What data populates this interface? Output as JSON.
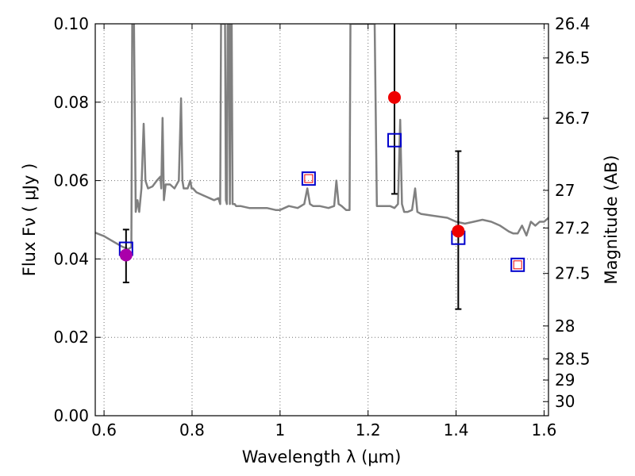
{
  "chart_data": {
    "type": "scatter",
    "xlabel": "Wavelength  λ (μm)",
    "ylabel": "Flux  Fν  ( μJy )",
    "ylabel_right": "Magnitude (AB)",
    "xlim": [
      0.58,
      1.61
    ],
    "ylim": [
      0.0,
      0.1
    ],
    "grid": true,
    "x_ticks": [
      {
        "value": 0.6,
        "label": "0.6"
      },
      {
        "value": 0.8,
        "label": "0.8"
      },
      {
        "value": 1.0,
        "label": "1"
      },
      {
        "value": 1.2,
        "label": "1.2"
      },
      {
        "value": 1.4,
        "label": "1.4"
      },
      {
        "value": 1.6,
        "label": "1.6"
      }
    ],
    "y_ticks": [
      {
        "value": 0.0,
        "label": "0.00"
      },
      {
        "value": 0.02,
        "label": "0.02"
      },
      {
        "value": 0.04,
        "label": "0.04"
      },
      {
        "value": 0.06,
        "label": "0.06"
      },
      {
        "value": 0.08,
        "label": "0.08"
      },
      {
        "value": 0.1,
        "label": "0.10"
      }
    ],
    "mag_ticks": [
      {
        "value": 0.1,
        "label": "26.4"
      },
      {
        "value": 0.0913,
        "label": "26.5"
      },
      {
        "value": 0.0759,
        "label": "26.7"
      },
      {
        "value": 0.0575,
        "label": "27"
      },
      {
        "value": 0.0479,
        "label": "27.2"
      },
      {
        "value": 0.0363,
        "label": "27.5"
      },
      {
        "value": 0.0229,
        "label": "28"
      },
      {
        "value": 0.0145,
        "label": "28.5"
      },
      {
        "value": 0.0091,
        "label": "29"
      },
      {
        "value": 0.0036,
        "label": "30"
      }
    ],
    "colors": {
      "model": "#808080",
      "observed_red": "#ee0000",
      "observed_magenta": "#aa00aa",
      "model_box": "#0000cc",
      "model_box_inner": "#ee0000",
      "errorbar": "#000000"
    },
    "model_spectrum": {
      "x": [
        0.58,
        0.6,
        0.62,
        0.64,
        0.655,
        0.662,
        0.664,
        0.666,
        0.668,
        0.672,
        0.676,
        0.68,
        0.685,
        0.69,
        0.692,
        0.694,
        0.7,
        0.71,
        0.72,
        0.728,
        0.73,
        0.733,
        0.736,
        0.74,
        0.75,
        0.76,
        0.77,
        0.775,
        0.778,
        0.781,
        0.79,
        0.796,
        0.799,
        0.802,
        0.81,
        0.82,
        0.83,
        0.84,
        0.85,
        0.86,
        0.864,
        0.866,
        0.87,
        0.875,
        0.877,
        0.879,
        0.881,
        0.884,
        0.886,
        0.888,
        0.89,
        0.892,
        0.895,
        0.897,
        0.9,
        0.91,
        0.93,
        0.95,
        0.97,
        0.99,
        1.0,
        1.02,
        1.04,
        1.055,
        1.062,
        1.068,
        1.075,
        1.09,
        1.11,
        1.123,
        1.128,
        1.133,
        1.14,
        1.15,
        1.155,
        1.158,
        1.16,
        1.18,
        1.2,
        1.215,
        1.22,
        1.25,
        1.26,
        1.268,
        1.273,
        1.277,
        1.282,
        1.29,
        1.3,
        1.307,
        1.312,
        1.32,
        1.35,
        1.38,
        1.4,
        1.42,
        1.44,
        1.46,
        1.48,
        1.5,
        1.52,
        1.53,
        1.54,
        1.55,
        1.56,
        1.57,
        1.58,
        1.59,
        1.6,
        1.61
      ],
      "y": [
        0.0467,
        0.0458,
        0.0445,
        0.0432,
        0.0425,
        0.043,
        0.1,
        0.1,
        0.1,
        0.052,
        0.055,
        0.052,
        0.058,
        0.0745,
        0.068,
        0.06,
        0.058,
        0.0585,
        0.06,
        0.061,
        0.058,
        0.076,
        0.055,
        0.059,
        0.059,
        0.058,
        0.06,
        0.081,
        0.06,
        0.058,
        0.058,
        0.06,
        0.058,
        0.058,
        0.057,
        0.0565,
        0.056,
        0.0555,
        0.055,
        0.0555,
        0.054,
        0.1,
        0.1,
        0.1,
        0.055,
        0.054,
        0.1,
        0.1,
        0.054,
        0.1,
        0.1,
        0.054,
        0.054,
        0.054,
        0.0535,
        0.0535,
        0.053,
        0.053,
        0.053,
        0.0525,
        0.0525,
        0.0535,
        0.053,
        0.054,
        0.058,
        0.054,
        0.0535,
        0.0535,
        0.053,
        0.0535,
        0.06,
        0.054,
        0.0535,
        0.0525,
        0.0525,
        0.0525,
        0.1,
        0.1,
        0.1,
        0.1,
        0.0535,
        0.0535,
        0.053,
        0.054,
        0.0755,
        0.054,
        0.052,
        0.052,
        0.0525,
        0.058,
        0.052,
        0.0515,
        0.051,
        0.0505,
        0.0495,
        0.049,
        0.0495,
        0.05,
        0.0495,
        0.0485,
        0.047,
        0.0465,
        0.0465,
        0.0485,
        0.046,
        0.0495,
        0.0485,
        0.0495,
        0.0495,
        0.0505
      ]
    },
    "observed_points": [
      {
        "x": 0.65,
        "y": 0.041,
        "yerr_low": 0.034,
        "yerr_high": 0.0475,
        "color": "#aa00aa"
      },
      {
        "x": 1.26,
        "y": 0.0812,
        "yerr_low": 0.0566,
        "yerr_high": 0.1,
        "color": "#ee0000"
      },
      {
        "x": 1.405,
        "y": 0.0471,
        "yerr_low": 0.0272,
        "yerr_high": 0.0675,
        "color": "#ee0000"
      }
    ],
    "model_photometry": [
      {
        "x": 0.65,
        "y": 0.0426,
        "inner": false
      },
      {
        "x": 1.065,
        "y": 0.0605,
        "inner": true
      },
      {
        "x": 1.26,
        "y": 0.0703,
        "inner": false
      },
      {
        "x": 1.405,
        "y": 0.0454,
        "inner": false
      },
      {
        "x": 1.54,
        "y": 0.0385,
        "inner": true
      }
    ]
  }
}
